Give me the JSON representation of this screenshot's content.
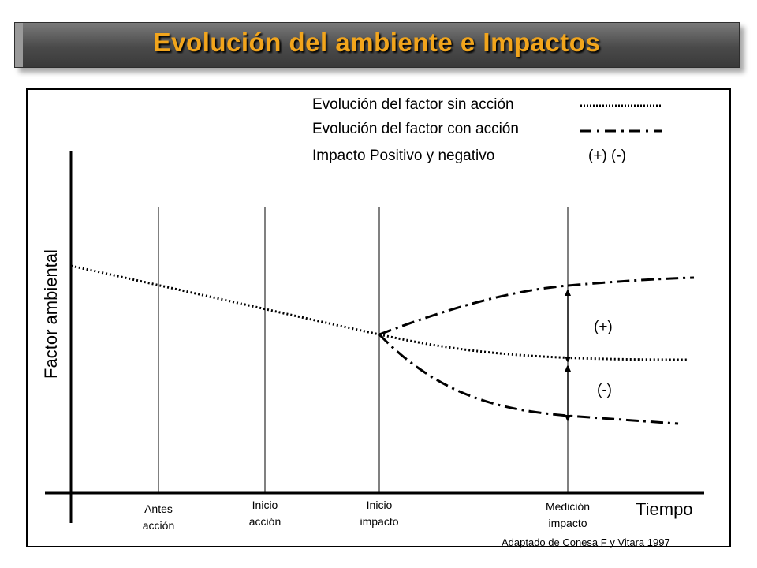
{
  "title": "Evolución del ambiente e Impactos",
  "legend": {
    "sin_accion": "Evolución del factor sin acción",
    "con_accion": "Evolución del factor con acción",
    "impacto": "Impacto Positivo y negativo",
    "impacto_symbols": "(+) (-)"
  },
  "axes": {
    "y_label": "Factor ambiental",
    "x_label": "Tiempo"
  },
  "milestones": [
    {
      "line1": "Antes",
      "line2": "acción"
    },
    {
      "line1": "Inicio",
      "line2": "acción"
    },
    {
      "line1": "Inicio",
      "line2": "impacto"
    },
    {
      "line1": "Medición",
      "line2": "impacto"
    }
  ],
  "markers": {
    "positive": "(+)",
    "negative": "(-)"
  },
  "credit": "Adaptado de Conesa F y Vitara 1997",
  "colors": {
    "title_text": "#f2a51c",
    "title_bar": "#4a4a4a"
  }
}
